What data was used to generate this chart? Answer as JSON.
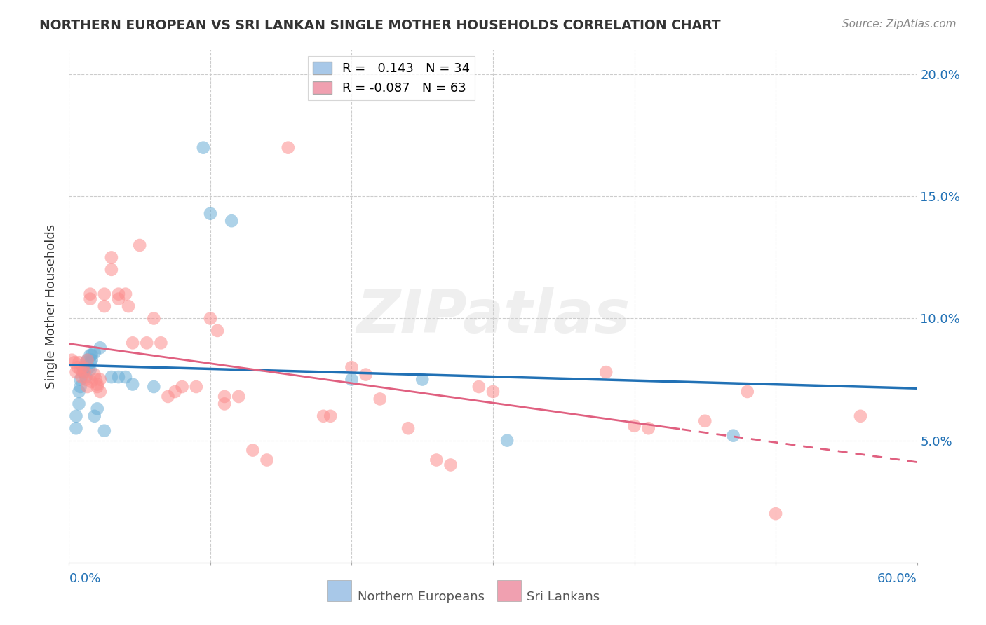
{
  "title": "NORTHERN EUROPEAN VS SRI LANKAN SINGLE MOTHER HOUSEHOLDS CORRELATION CHART",
  "source": "Source: ZipAtlas.com",
  "ylabel": "Single Mother Households",
  "xlim": [
    0.0,
    0.6
  ],
  "ylim": [
    0.0,
    0.21
  ],
  "yticks": [
    0.05,
    0.1,
    0.15,
    0.2
  ],
  "ytick_labels": [
    "5.0%",
    "10.0%",
    "15.0%",
    "20.0%"
  ],
  "xticks_major": [
    0.0,
    0.1,
    0.2,
    0.3,
    0.4,
    0.5,
    0.6
  ],
  "blue_R": 0.143,
  "blue_N": 34,
  "pink_R": -0.087,
  "pink_N": 63,
  "blue_color": "#6baed6",
  "pink_color": "#fc8d8d",
  "blue_line_color": "#2171b5",
  "pink_line_color": "#e06080",
  "legend_box_color_blue": "#a8c8e8",
  "legend_box_color_pink": "#f0a0b0",
  "watermark": "ZIPatlas",
  "blue_points": [
    [
      0.005,
      0.055
    ],
    [
      0.005,
      0.06
    ],
    [
      0.007,
      0.07
    ],
    [
      0.007,
      0.065
    ],
    [
      0.008,
      0.075
    ],
    [
      0.008,
      0.072
    ],
    [
      0.01,
      0.08
    ],
    [
      0.01,
      0.078
    ],
    [
      0.012,
      0.082
    ],
    [
      0.012,
      0.076
    ],
    [
      0.013,
      0.083
    ],
    [
      0.014,
      0.08
    ],
    [
      0.015,
      0.082
    ],
    [
      0.015,
      0.079
    ],
    [
      0.015,
      0.085
    ],
    [
      0.016,
      0.083
    ],
    [
      0.016,
      0.085
    ],
    [
      0.018,
      0.086
    ],
    [
      0.018,
      0.06
    ],
    [
      0.02,
      0.063
    ],
    [
      0.022,
      0.088
    ],
    [
      0.025,
      0.054
    ],
    [
      0.03,
      0.076
    ],
    [
      0.035,
      0.076
    ],
    [
      0.04,
      0.076
    ],
    [
      0.045,
      0.073
    ],
    [
      0.06,
      0.072
    ],
    [
      0.095,
      0.17
    ],
    [
      0.1,
      0.143
    ],
    [
      0.115,
      0.14
    ],
    [
      0.2,
      0.075
    ],
    [
      0.25,
      0.075
    ],
    [
      0.31,
      0.05
    ],
    [
      0.47,
      0.052
    ]
  ],
  "pink_points": [
    [
      0.002,
      0.083
    ],
    [
      0.004,
      0.082
    ],
    [
      0.005,
      0.078
    ],
    [
      0.006,
      0.08
    ],
    [
      0.007,
      0.082
    ],
    [
      0.008,
      0.079
    ],
    [
      0.009,
      0.076
    ],
    [
      0.01,
      0.08
    ],
    [
      0.011,
      0.078
    ],
    [
      0.012,
      0.075
    ],
    [
      0.013,
      0.083
    ],
    [
      0.013,
      0.072
    ],
    [
      0.015,
      0.11
    ],
    [
      0.015,
      0.108
    ],
    [
      0.016,
      0.074
    ],
    [
      0.018,
      0.077
    ],
    [
      0.019,
      0.075
    ],
    [
      0.02,
      0.073
    ],
    [
      0.02,
      0.072
    ],
    [
      0.022,
      0.07
    ],
    [
      0.022,
      0.075
    ],
    [
      0.025,
      0.11
    ],
    [
      0.025,
      0.105
    ],
    [
      0.03,
      0.125
    ],
    [
      0.03,
      0.12
    ],
    [
      0.035,
      0.11
    ],
    [
      0.035,
      0.108
    ],
    [
      0.04,
      0.11
    ],
    [
      0.042,
      0.105
    ],
    [
      0.045,
      0.09
    ],
    [
      0.05,
      0.13
    ],
    [
      0.055,
      0.09
    ],
    [
      0.06,
      0.1
    ],
    [
      0.065,
      0.09
    ],
    [
      0.07,
      0.068
    ],
    [
      0.075,
      0.07
    ],
    [
      0.08,
      0.072
    ],
    [
      0.09,
      0.072
    ],
    [
      0.1,
      0.1
    ],
    [
      0.105,
      0.095
    ],
    [
      0.11,
      0.068
    ],
    [
      0.11,
      0.065
    ],
    [
      0.12,
      0.068
    ],
    [
      0.13,
      0.046
    ],
    [
      0.14,
      0.042
    ],
    [
      0.155,
      0.17
    ],
    [
      0.18,
      0.06
    ],
    [
      0.185,
      0.06
    ],
    [
      0.2,
      0.08
    ],
    [
      0.21,
      0.077
    ],
    [
      0.22,
      0.067
    ],
    [
      0.24,
      0.055
    ],
    [
      0.26,
      0.042
    ],
    [
      0.27,
      0.04
    ],
    [
      0.29,
      0.072
    ],
    [
      0.3,
      0.07
    ],
    [
      0.38,
      0.078
    ],
    [
      0.4,
      0.056
    ],
    [
      0.41,
      0.055
    ],
    [
      0.45,
      0.058
    ],
    [
      0.48,
      0.07
    ],
    [
      0.5,
      0.02
    ],
    [
      0.56,
      0.06
    ]
  ]
}
